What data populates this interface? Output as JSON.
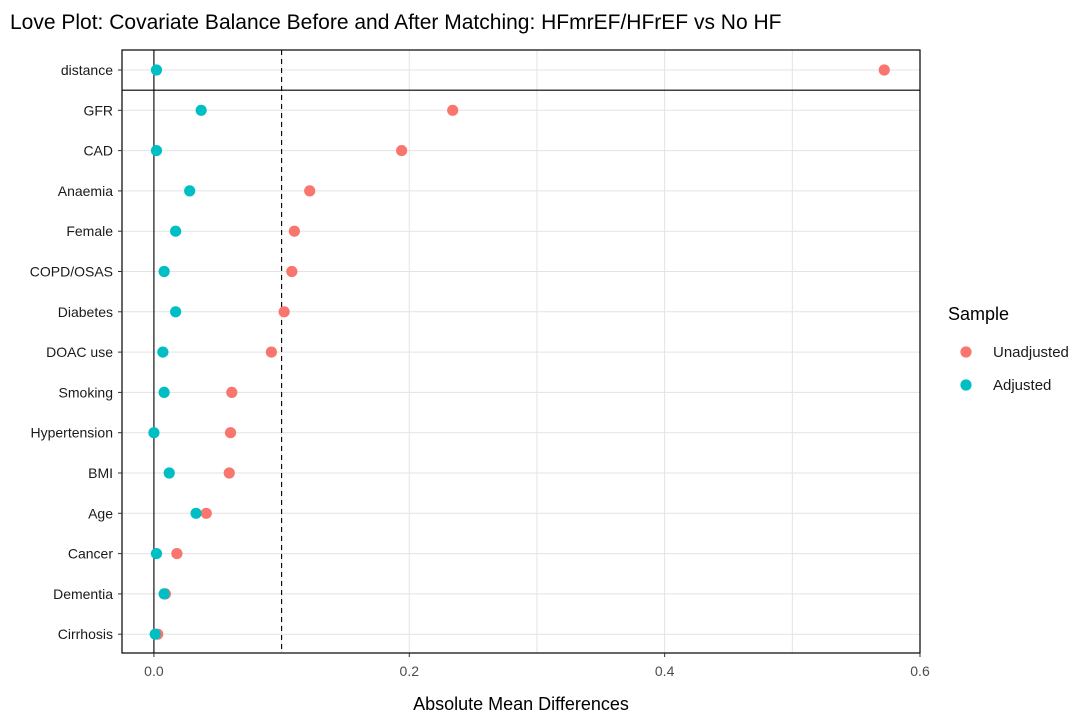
{
  "chart_data": {
    "type": "scatter",
    "title": "Love Plot: Covariate Balance Before and After Matching: HFmrEF/HFrEF vs No HF",
    "xlabel": "Absolute Mean Differences",
    "ylabel": "",
    "xlim": [
      -0.025,
      0.6
    ],
    "x_ticks": [
      0.0,
      0.2,
      0.4,
      0.6
    ],
    "x_tick_labels": [
      "0.0",
      "0.2",
      "0.4",
      "0.6"
    ],
    "threshold": 0.1,
    "grid": true,
    "legend": {
      "title": "Sample",
      "position": "right"
    },
    "categories": [
      "distance",
      "GFR",
      "CAD",
      "Anaemia",
      "Female",
      "COPD/OSAS",
      "Diabetes",
      "DOAC use",
      "Smoking",
      "Hypertension",
      "BMI",
      "Age",
      "Cancer",
      "Dementia",
      "Cirrhosis"
    ],
    "series": [
      {
        "name": "Unadjusted",
        "color": "#F8766D",
        "values": [
          0.572,
          0.234,
          0.194,
          0.122,
          0.11,
          0.108,
          0.102,
          0.092,
          0.061,
          0.06,
          0.059,
          0.041,
          0.018,
          0.009,
          0.003
        ]
      },
      {
        "name": "Adjusted",
        "color": "#00BFC4",
        "values": [
          0.002,
          0.037,
          0.002,
          0.028,
          0.017,
          0.008,
          0.017,
          0.007,
          0.008,
          0.0,
          0.012,
          0.033,
          0.002,
          0.008,
          0.001
        ]
      }
    ]
  }
}
